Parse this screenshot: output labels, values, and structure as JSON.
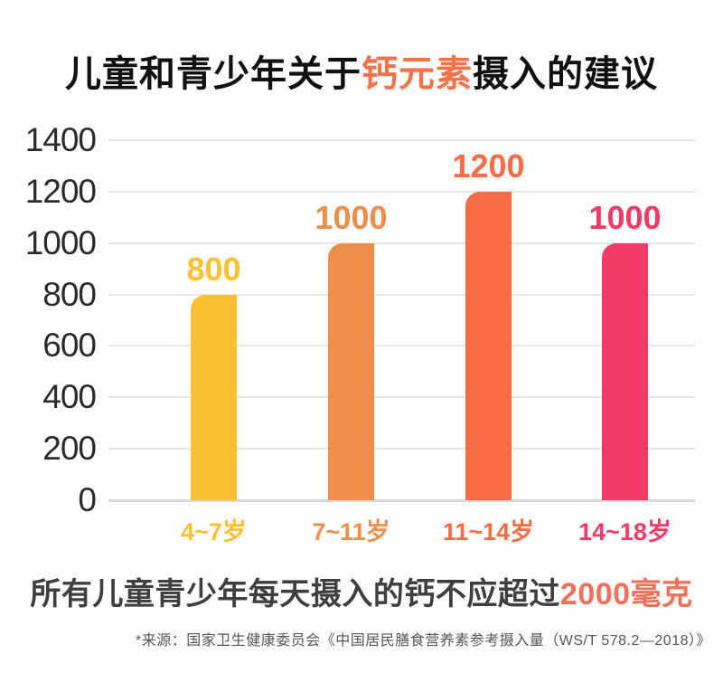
{
  "title": {
    "prefix": "儿童和青少年关于",
    "highlight": "钙元素",
    "suffix": "摄入的建议"
  },
  "note": {
    "prefix": "所有儿童青少年每天摄入的钙不应超过",
    "highlight": "2000毫克"
  },
  "source": {
    "text": "*来源：国家卫生健康委员会《中国居民膳食营养素参考摄入量（WS/T 578.2—2018）》"
  },
  "colors": {
    "background": "#FFFFFF",
    "title_text": "#111111",
    "title_highlight": "#F2724B",
    "note_text": "#3F3F3F",
    "note_highlight": "#F0705A",
    "source_text": "#565656",
    "axis_label": "#2B2B2B",
    "gridline": "#E6E6E6",
    "baseline": "#D8D8D8"
  },
  "chart_data": {
    "type": "bar",
    "title": "儿童和青少年关于钙元素摄入的建议",
    "categories": [
      "4~7岁",
      "7~11岁",
      "11~14岁",
      "14~18岁"
    ],
    "values": [
      800,
      1000,
      1200,
      1000
    ],
    "value_labels": [
      "800",
      "1000",
      "1200",
      "1000"
    ],
    "bar_colors": [
      "#FBC133",
      "#EF8E4B",
      "#F76B45",
      "#F23A67"
    ],
    "yticks": [
      0,
      200,
      400,
      600,
      800,
      1000,
      1200,
      1400
    ],
    "ylim": [
      0,
      1400
    ],
    "xlabel": "",
    "ylabel": "",
    "grid": "horizontal",
    "legend": "none",
    "annotation": "所有儿童青少年每天摄入的钙不应超过2000毫克"
  }
}
